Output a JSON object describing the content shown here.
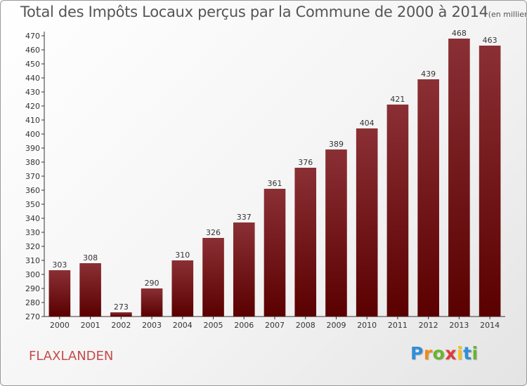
{
  "chart_data": {
    "type": "bar",
    "title": "Total des Impôts Locaux perçus par la Commune de 2000 à 2014",
    "subtitle": "(en milliers d'€)",
    "categories": [
      "2000",
      "2001",
      "2002",
      "2003",
      "2004",
      "2005",
      "2006",
      "2007",
      "2008",
      "2009",
      "2010",
      "2011",
      "2012",
      "2013",
      "2014"
    ],
    "values": [
      303,
      308,
      273,
      290,
      310,
      326,
      337,
      361,
      376,
      389,
      404,
      421,
      439,
      468,
      463
    ],
    "ylim": [
      270,
      470
    ],
    "ytick_step": 10,
    "xlabel": "",
    "ylabel": "",
    "grid": false,
    "bar_color": "#7a1a1d"
  },
  "commune": "FLAXLANDEN",
  "logo": {
    "letters": [
      "P",
      "r",
      "o",
      "x",
      "i",
      "t",
      "i"
    ],
    "colors": [
      "#2e8fd8",
      "#f08a1c",
      "#6ab42d",
      "#e03a3a",
      "#f3c51a",
      "#2e8fd8",
      "#6ab42d"
    ]
  }
}
